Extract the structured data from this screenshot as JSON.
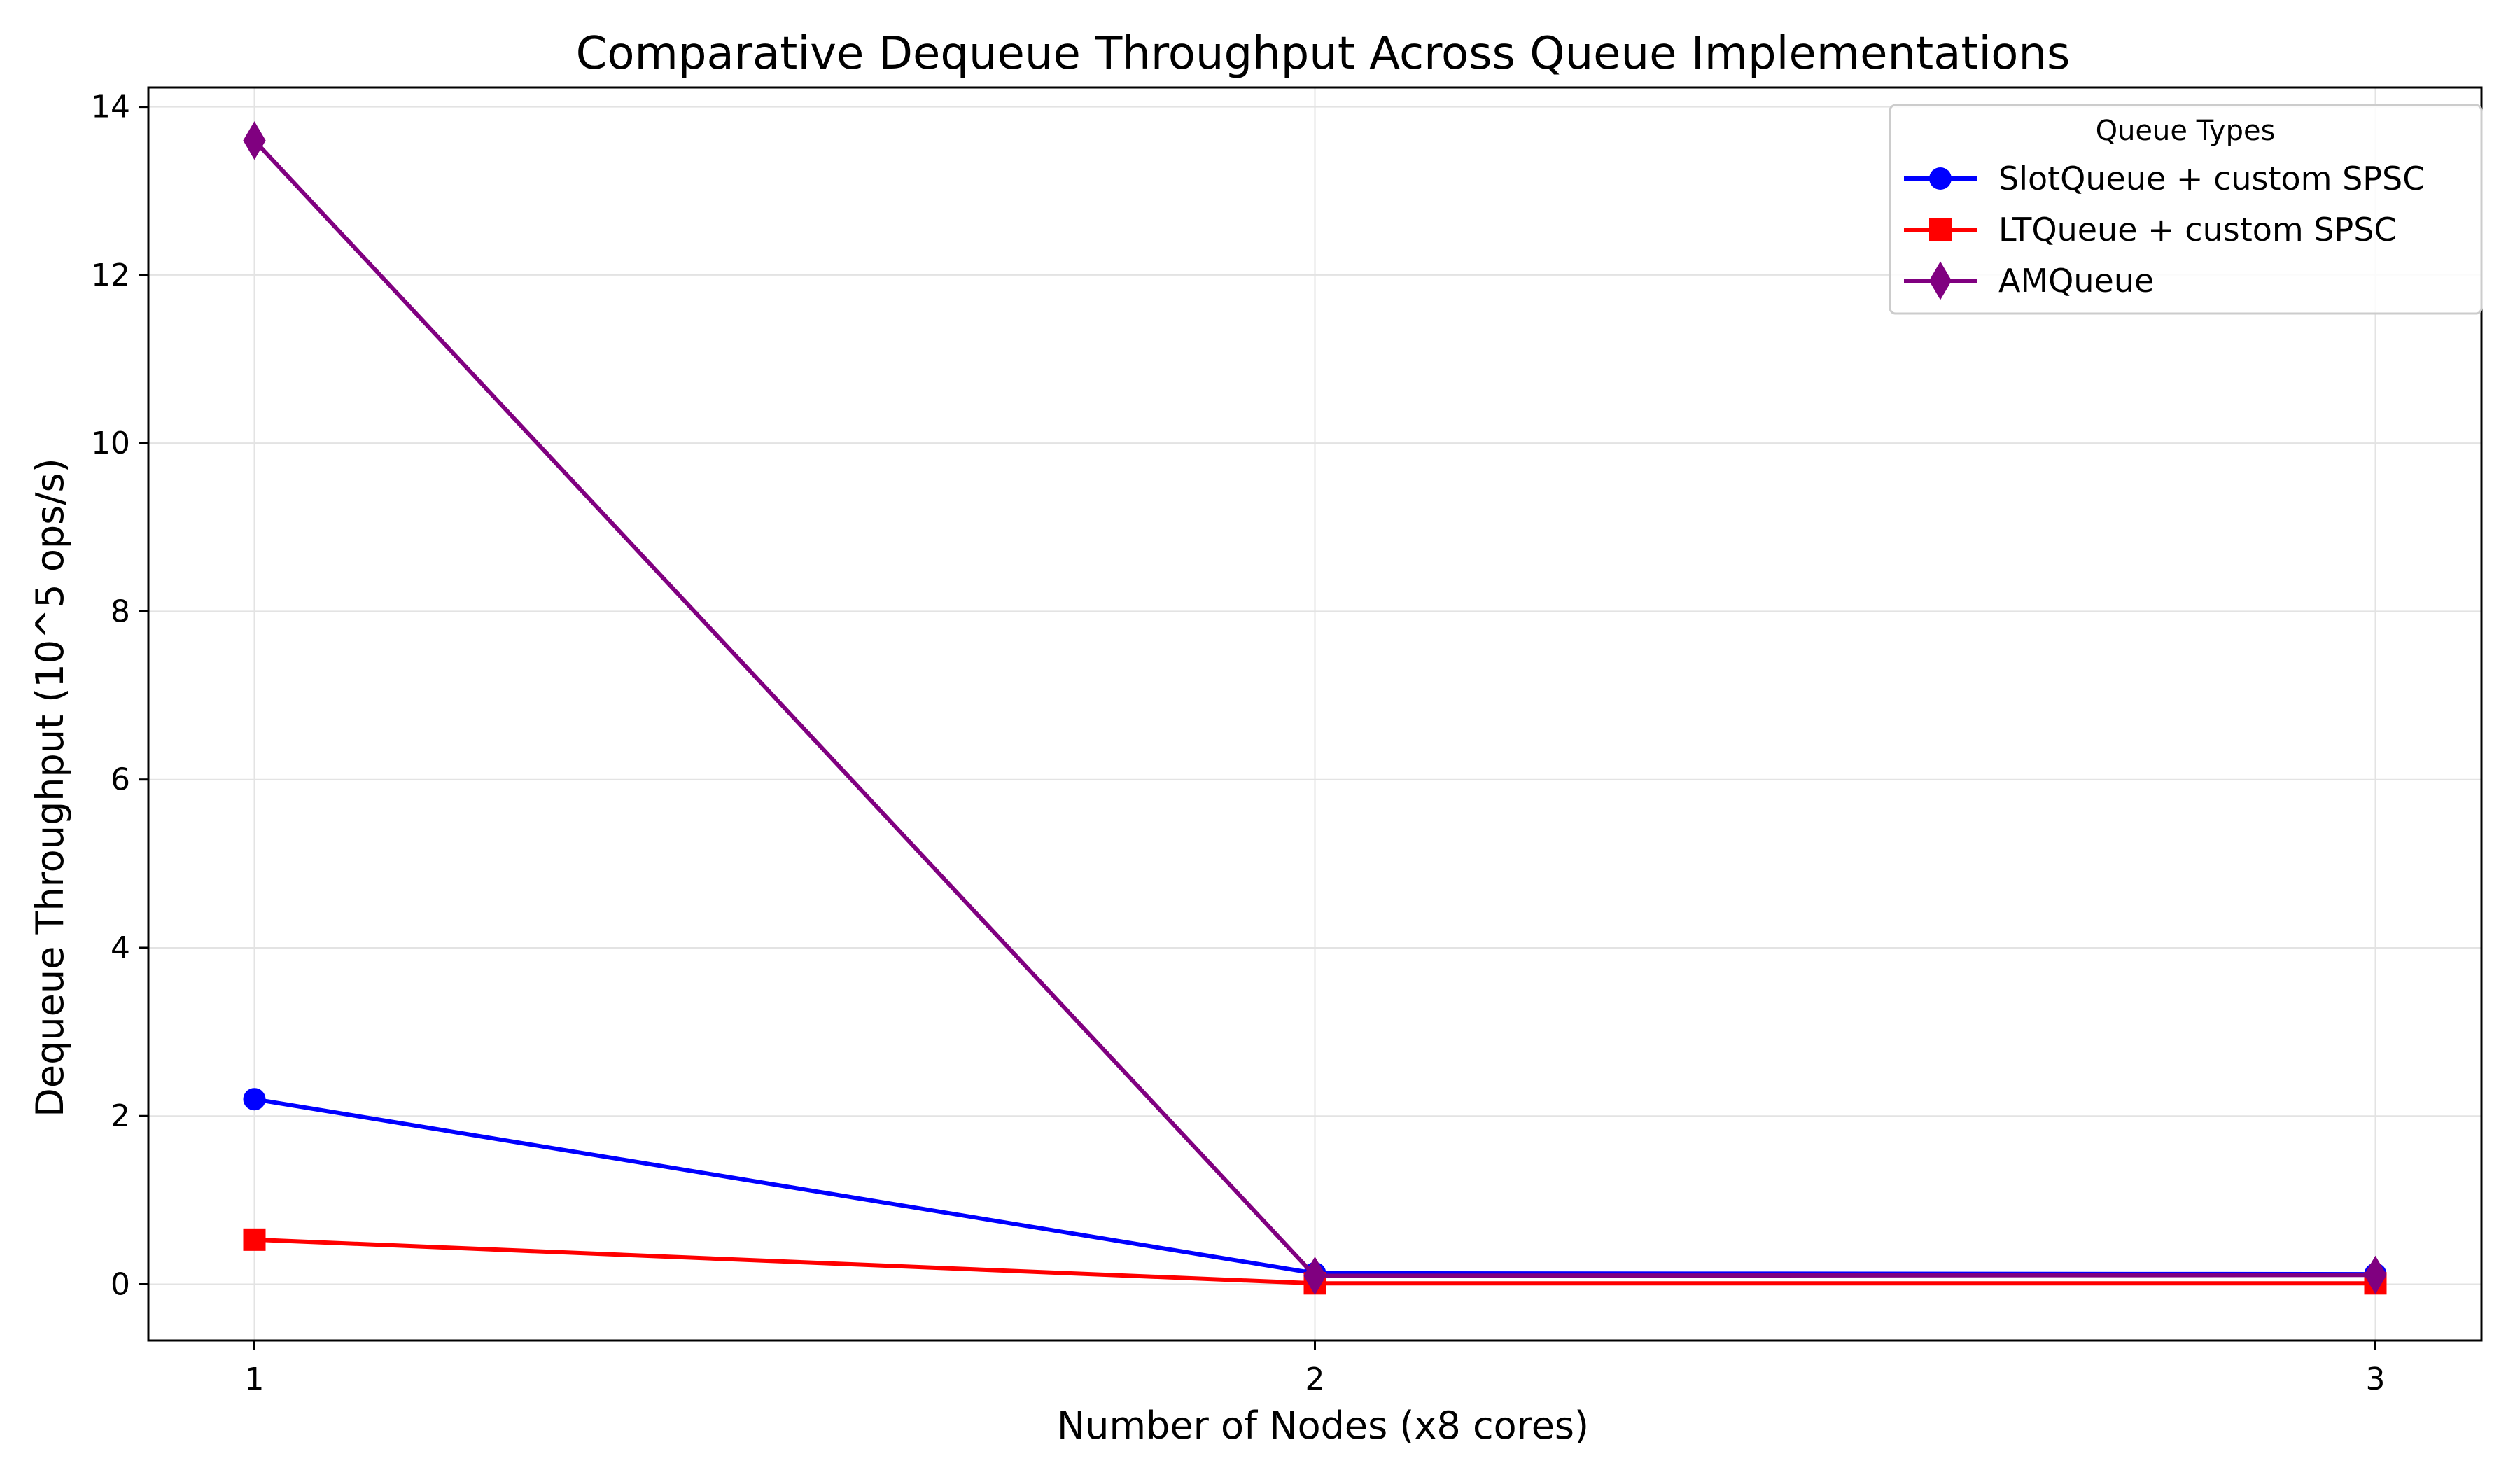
{
  "chart_data": {
    "type": "line",
    "title": "Comparative Dequeue Throughput Across Queue Implementations",
    "xlabel": "Number of Nodes (x8 cores)",
    "ylabel": "Dequeue Throughput (10^5 ops/s)",
    "x": [
      1,
      2,
      3
    ],
    "x_tick_labels": [
      "1",
      "2",
      "3"
    ],
    "xlim": [
      0.9,
      3.1
    ],
    "ylim": [
      -0.67,
      14.23
    ],
    "y_ticks": [
      0,
      2,
      4,
      6,
      8,
      10,
      12,
      14
    ],
    "y_tick_labels": [
      "0",
      "2",
      "4",
      "6",
      "8",
      "10",
      "12",
      "14"
    ],
    "grid": true,
    "legend": {
      "title": "Queue Types",
      "placement": "top-right"
    },
    "series": [
      {
        "name": "SlotQueue + custom SPSC",
        "values": [
          2.2,
          0.13,
          0.12
        ],
        "color": "#0000ff",
        "marker": "circle"
      },
      {
        "name": "LTQueue + custom SPSC",
        "values": [
          0.53,
          0.01,
          0.01
        ],
        "color": "#ff0000",
        "marker": "square"
      },
      {
        "name": "AMQueue",
        "values": [
          13.6,
          0.1,
          0.11
        ],
        "color": "#800080",
        "marker": "diamond"
      }
    ]
  }
}
